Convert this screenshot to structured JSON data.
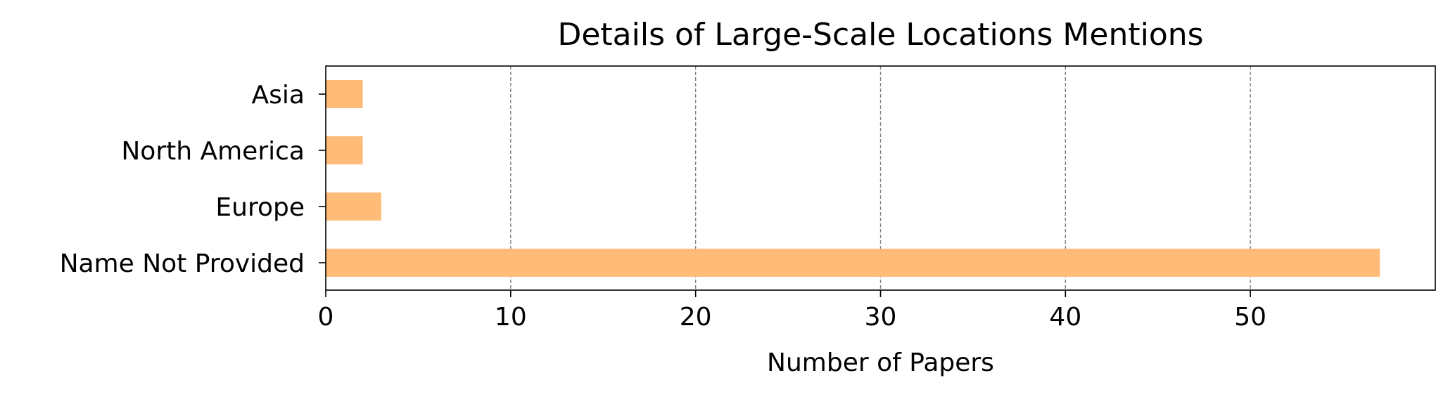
{
  "chart_data": {
    "type": "bar",
    "orientation": "horizontal",
    "title": "Details of Large-Scale Locations Mentions",
    "xlabel": "Number of Papers",
    "ylabel": "",
    "categories": [
      "Asia",
      "North America",
      "Europe",
      "Name Not Provided"
    ],
    "values": [
      2,
      2,
      3,
      57
    ],
    "xlim": [
      0,
      60
    ],
    "xticks": [
      0,
      10,
      20,
      30,
      40,
      50
    ],
    "grid": "x-dashed",
    "legend": "none",
    "bar_color": "#ffbb78",
    "grid_color": "#808080",
    "axis_color": "#000000"
  }
}
